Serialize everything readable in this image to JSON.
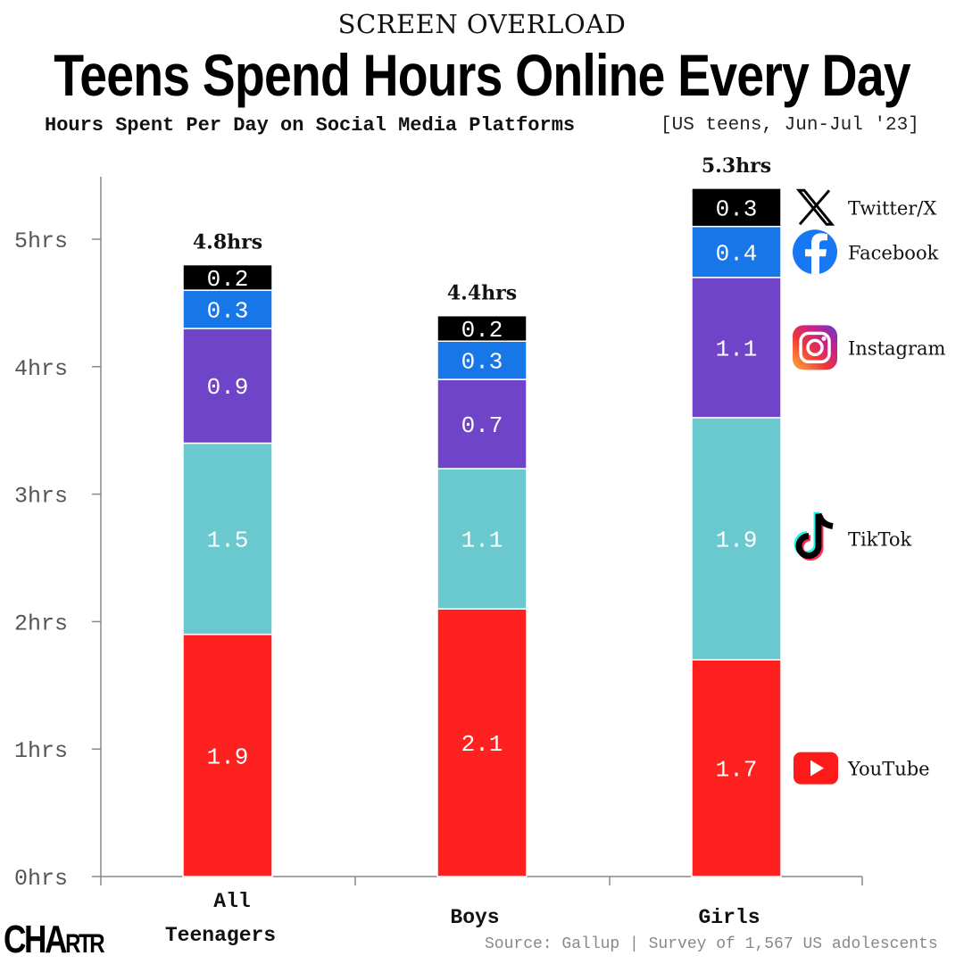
{
  "header": {
    "kicker": "SCREEN OVERLOAD",
    "title": "Teens Spend Hours Online Every Day",
    "subtitle": "Hours Spent Per Day on Social Media Platforms",
    "note": "[US teens, Jun-Jul '23]"
  },
  "footer": {
    "source": "Source: Gallup | Survey of 1,567 US adolescents",
    "logo": "CHARTR"
  },
  "chart_data": {
    "type": "bar",
    "stacked": true,
    "title": "Hours Spent Per Day on Social Media Platforms",
    "ylabel": "",
    "xlabel": "",
    "ylim": [
      0,
      5.5
    ],
    "yticks": [
      0,
      1,
      2,
      3,
      4,
      5
    ],
    "ytick_labels": [
      "0hrs",
      "1hrs",
      "2hrs",
      "3hrs",
      "4hrs",
      "5hrs"
    ],
    "categories": [
      [
        "All",
        "Teenagers"
      ],
      [
        "Boys"
      ],
      [
        "Girls"
      ]
    ],
    "totals": [
      "4.8hrs",
      "4.4hrs",
      "5.3hrs"
    ],
    "series": [
      {
        "name": "YouTube",
        "color": "#ff2020",
        "icon": "youtube-icon",
        "values": [
          1.9,
          2.1,
          1.7
        ]
      },
      {
        "name": "TikTok",
        "color": "#69c9cf",
        "icon": "tiktok-icon",
        "values": [
          1.5,
          1.1,
          1.9
        ]
      },
      {
        "name": "Instagram",
        "color": "#7044c9",
        "icon": "instagram-icon",
        "values": [
          0.9,
          0.7,
          1.1
        ]
      },
      {
        "name": "Facebook",
        "color": "#1877e8",
        "icon": "facebook-icon",
        "values": [
          0.3,
          0.3,
          0.4
        ]
      },
      {
        "name": "Twitter/X",
        "color": "#000000",
        "icon": "x-icon",
        "values": [
          0.2,
          0.2,
          0.3
        ]
      }
    ],
    "legend_position": "right",
    "grid": false
  }
}
